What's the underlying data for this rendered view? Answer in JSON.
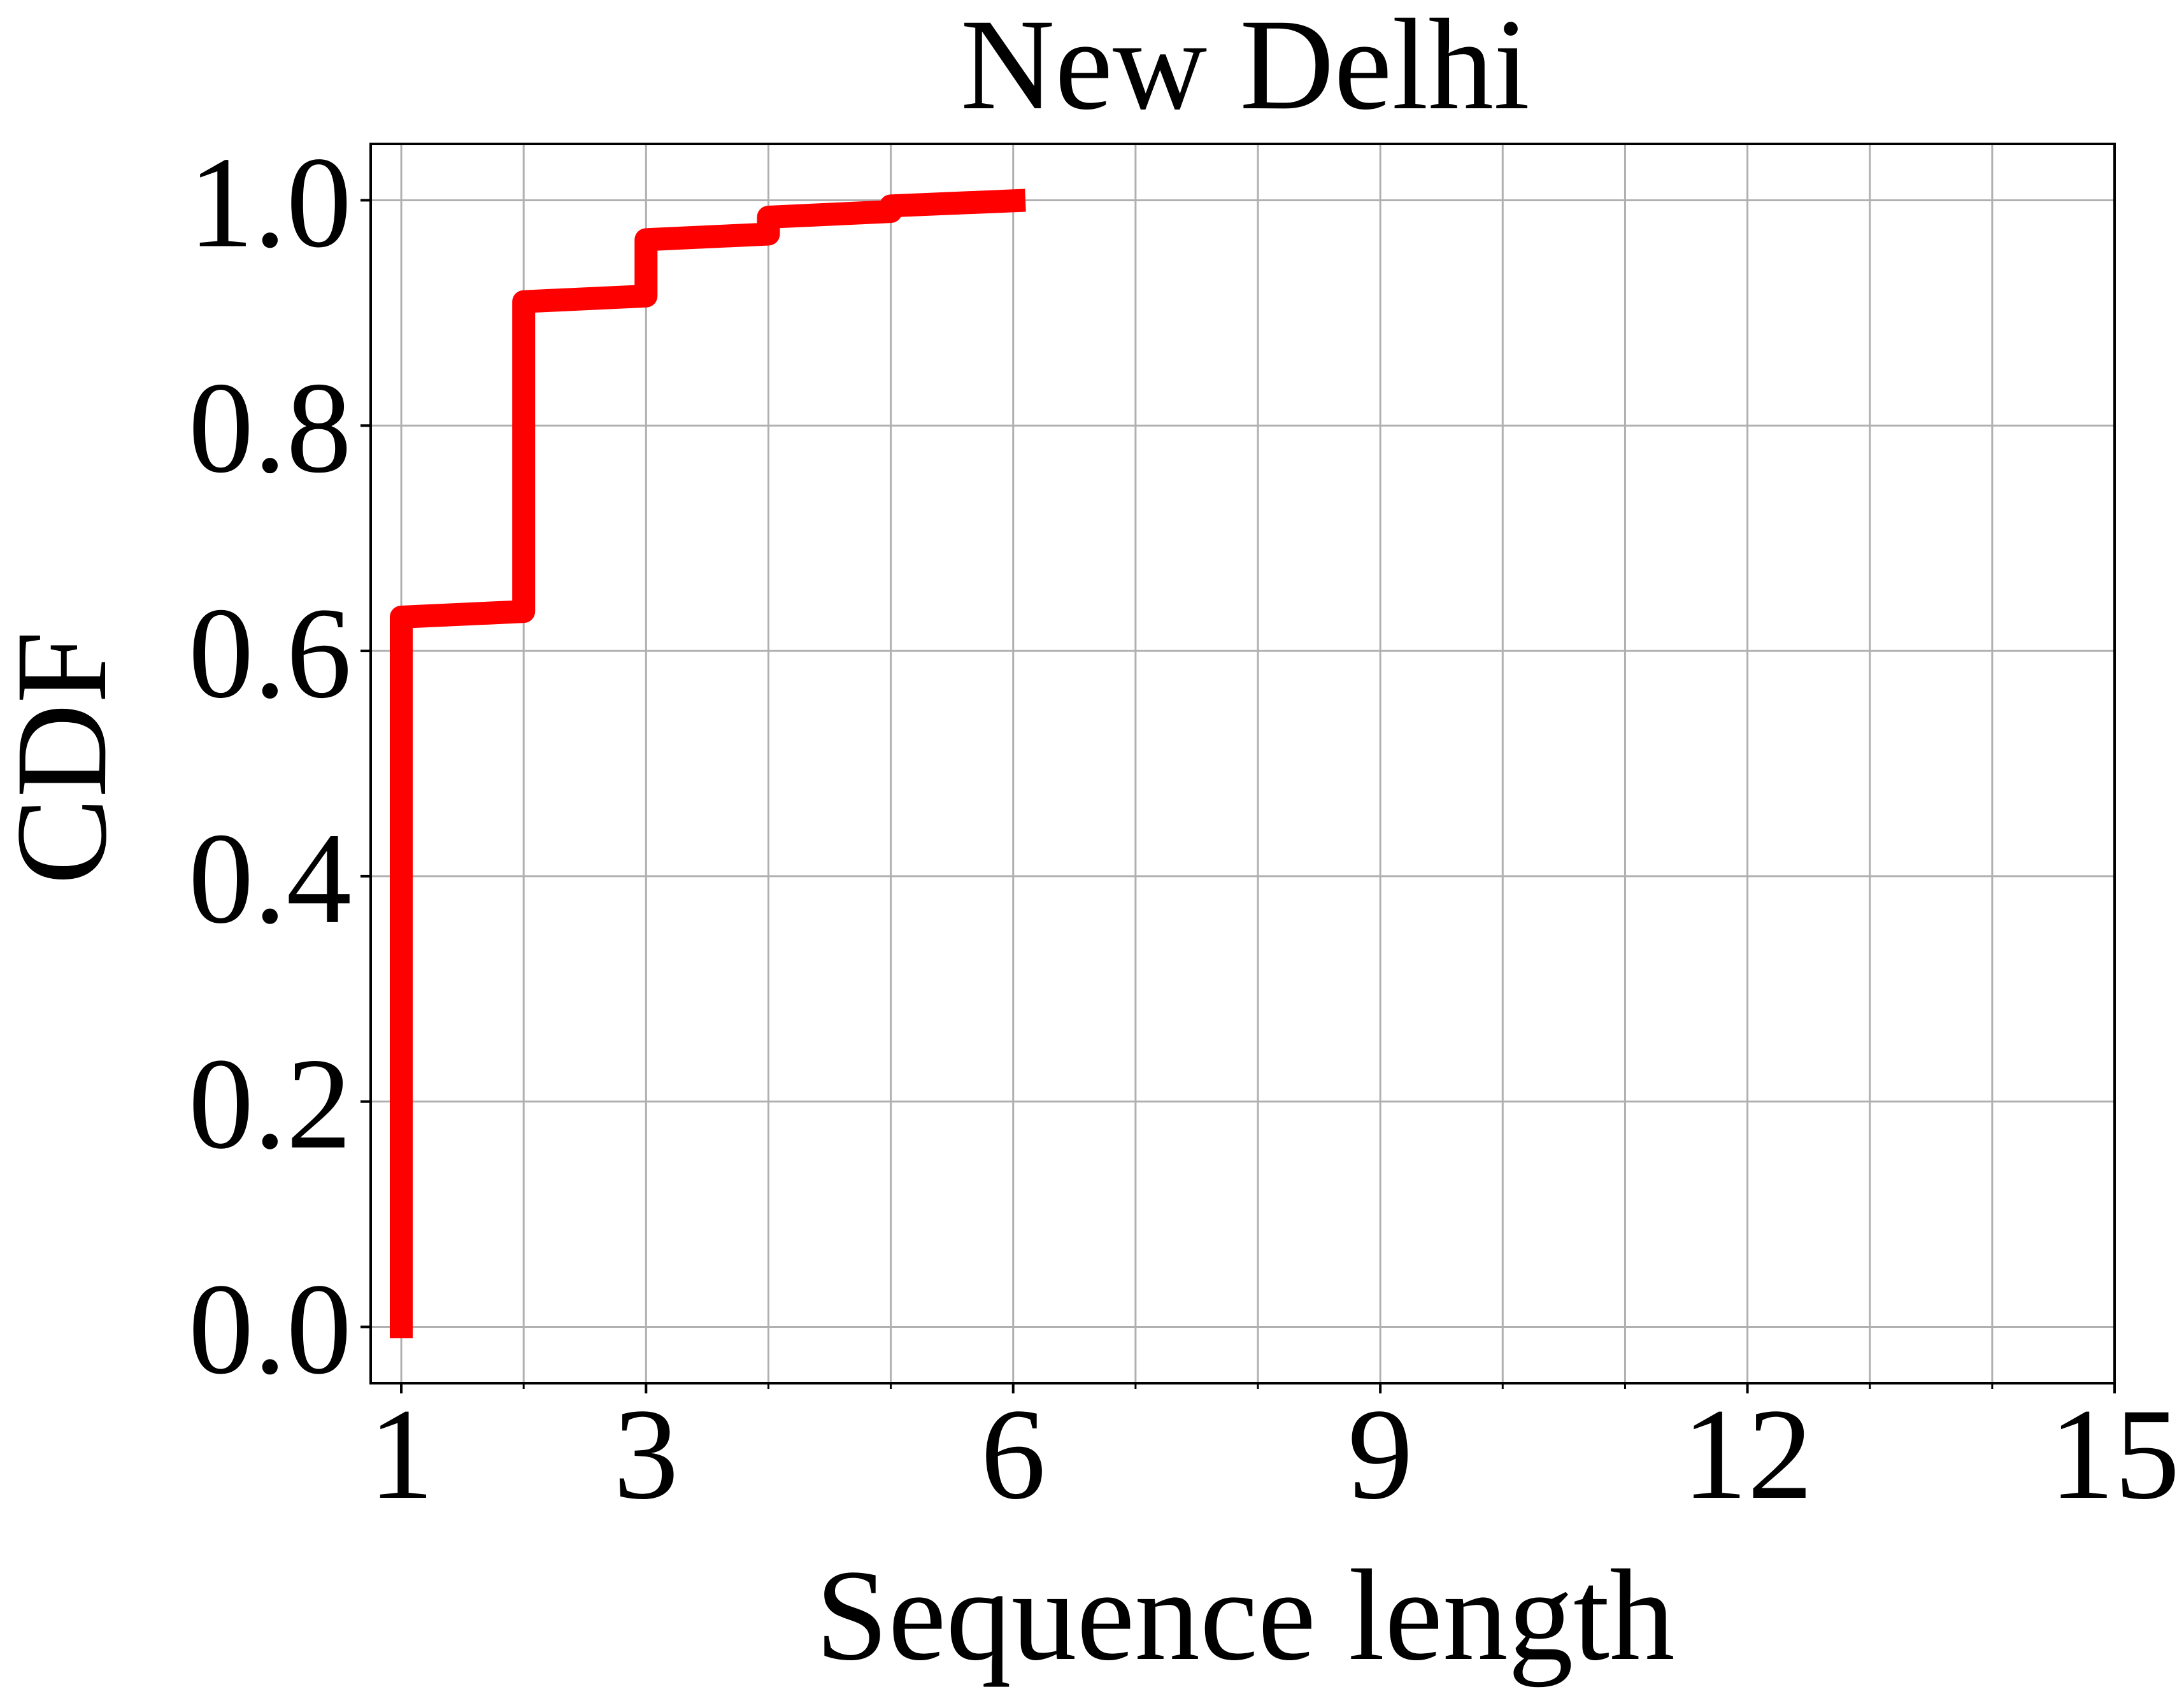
{
  "chart_data": {
    "type": "line",
    "title": "New Delhi",
    "xlabel": "Sequence length",
    "ylabel": "CDF",
    "xlim": [
      0.75,
      15
    ],
    "ylim": [
      -0.05,
      1.05
    ],
    "x_ticks": [
      1,
      3,
      6,
      9,
      12,
      15
    ],
    "x_tick_labels": [
      "1",
      "3",
      "6",
      "9",
      "12",
      "15"
    ],
    "x_minor_ticks": [
      2,
      4,
      5,
      7,
      8,
      10,
      11,
      13,
      14
    ],
    "y_ticks": [
      0.0,
      0.2,
      0.4,
      0.6,
      0.8,
      1.0
    ],
    "y_tick_labels": [
      "0.0",
      "0.2",
      "0.4",
      "0.6",
      "0.8",
      "1.0"
    ],
    "grid": true,
    "series": [
      {
        "color": "#ff0000",
        "x": [
          1,
          1,
          2,
          2,
          3,
          3,
          4,
          4,
          5,
          5,
          6.1
        ],
        "y": [
          -0.01,
          0.63,
          0.635,
          0.91,
          0.915,
          0.965,
          0.97,
          0.985,
          0.99,
          0.995,
          1.0
        ]
      }
    ]
  }
}
